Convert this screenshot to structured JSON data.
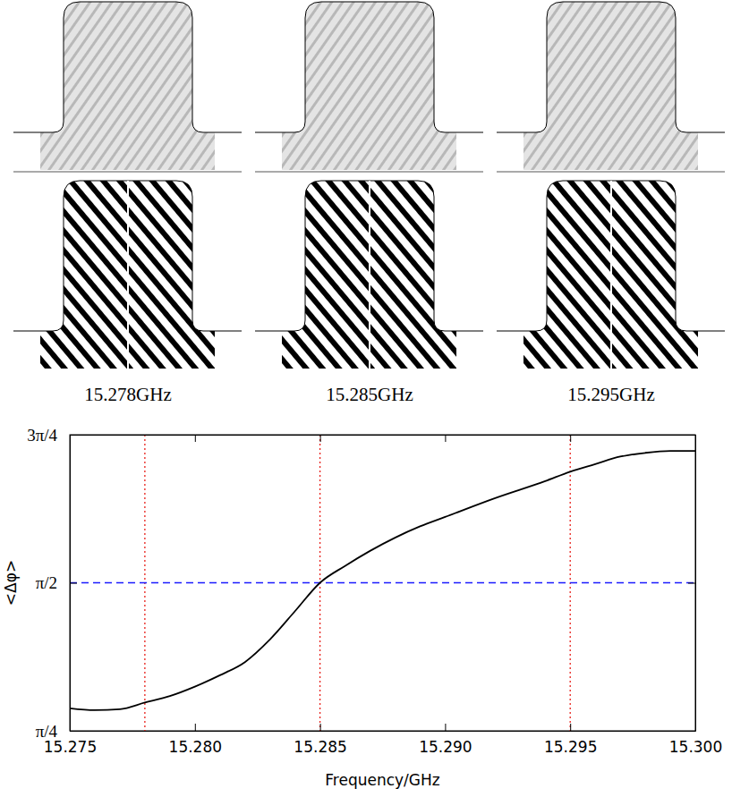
{
  "panels": [
    {
      "label": "15.278GHz"
    },
    {
      "label": "15.285GHz"
    },
    {
      "label": "15.295GHz"
    }
  ],
  "chart_data": {
    "type": "line",
    "x_label": "Frequency/GHz",
    "y_label": "<Δφ>",
    "x": [
      15.275,
      15.276,
      15.277,
      15.278,
      15.279,
      15.28,
      15.281,
      15.282,
      15.283,
      15.284,
      15.285,
      15.286,
      15.287,
      15.288,
      15.289,
      15.29,
      15.292,
      15.294,
      15.295,
      15.296,
      15.297,
      15.298,
      15.299,
      15.3
    ],
    "values": [
      0.905,
      0.895,
      0.9,
      0.935,
      0.97,
      1.02,
      1.08,
      1.15,
      1.27,
      1.42,
      1.571,
      1.66,
      1.74,
      1.81,
      1.87,
      1.92,
      2.02,
      2.11,
      2.16,
      2.2,
      2.24,
      2.26,
      2.27,
      2.27
    ],
    "color": "#000000",
    "xlim": [
      15.275,
      15.3
    ],
    "xticks": [
      15.275,
      {
        "value": 15.28,
        "label": "15.280"
      },
      15.285,
      {
        "value": 15.29,
        "label": "15.290"
      },
      15.295,
      {
        "value": 15.3,
        "label": "15.300"
      }
    ],
    "ylim": [
      0.7854,
      2.3562
    ],
    "yticks": [
      {
        "value": 0.7854,
        "label": "π/4"
      },
      {
        "value": 1.5708,
        "label": "π/2"
      },
      {
        "value": 2.3562,
        "label": "3π/4"
      }
    ],
    "vlines": [
      15.278,
      15.285,
      15.295
    ],
    "hline": 1.5708,
    "grid": false
  }
}
